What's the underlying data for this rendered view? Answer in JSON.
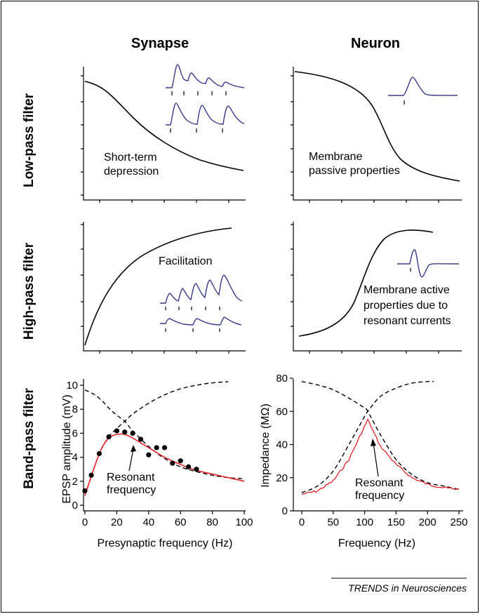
{
  "columns": {
    "left": "Synapse",
    "right": "Neuron"
  },
  "rows": {
    "low": "Low-pass filter",
    "high": "High-pass filter",
    "band": "Band-pass filter"
  },
  "panels": {
    "low_synapse": {
      "label_lines": [
        "Short-term",
        "depression"
      ]
    },
    "low_neuron": {
      "label_lines": [
        "Membrane",
        "passive properties"
      ]
    },
    "high_synapse": {
      "label_lines": [
        "Facilitation"
      ]
    },
    "high_neuron": {
      "label_lines": [
        "Membrane active",
        "properties due to",
        "resonant currents"
      ]
    }
  },
  "chart_data": [
    {
      "type": "line",
      "panel": "band_synapse",
      "ylabel": "EPSP amplitude (mV)",
      "xlabel": "Presynaptic frequency (Hz)",
      "xlim": [
        0,
        100
      ],
      "ylim": [
        0,
        10
      ],
      "x_ticks": [
        0,
        20,
        40,
        60,
        80,
        100
      ],
      "y_ticks": [
        0,
        2,
        4,
        6,
        8,
        10
      ],
      "annotation_lines": [
        "Resonant",
        "frequency"
      ],
      "scatter": {
        "x": [
          0,
          4,
          9,
          15,
          20,
          25,
          30,
          35,
          40,
          45,
          50,
          55,
          60,
          65,
          70
        ],
        "y": [
          1.2,
          2.5,
          4.3,
          5.7,
          6.2,
          6.1,
          6.0,
          5.5,
          4.2,
          4.8,
          4.8,
          3.5,
          3.7,
          3.2,
          3.0
        ]
      },
      "fit_curve": {
        "x": [
          0,
          5,
          10,
          15,
          20,
          25,
          30,
          40,
          50,
          60,
          70,
          80,
          90,
          100
        ],
        "y": [
          0.8,
          2.8,
          4.6,
          5.6,
          5.9,
          5.9,
          5.6,
          4.8,
          4.0,
          3.4,
          2.9,
          2.6,
          2.3,
          2.0
        ]
      },
      "dashed_curves": [
        {
          "x": [
            0,
            5,
            10,
            15,
            20,
            25,
            30,
            40,
            50,
            60,
            70,
            80,
            90,
            100
          ],
          "y": [
            9.6,
            9.3,
            8.8,
            8.1,
            7.5,
            7.0,
            6.2,
            4.9,
            3.9,
            3.2,
            2.8,
            2.5,
            2.3,
            2.2
          ]
        },
        {
          "x": [
            0,
            5,
            10,
            15,
            20,
            25,
            30,
            40,
            50,
            60,
            70,
            80,
            90
          ],
          "y": [
            0.8,
            2.8,
            4.6,
            5.7,
            6.4,
            7.0,
            7.6,
            8.5,
            9.2,
            9.7,
            10.0,
            10.2,
            10.3
          ]
        }
      ]
    },
    {
      "type": "line",
      "panel": "band_neuron",
      "ylabel": "Impedance (MΩ)",
      "xlabel": "Frequency (Hz)",
      "xlim": [
        0,
        250
      ],
      "ylim": [
        0,
        80
      ],
      "x_ticks": [
        0,
        50,
        100,
        150,
        200,
        250
      ],
      "y_ticks": [
        0,
        20,
        40,
        60,
        80
      ],
      "annotation_lines": [
        "Resonant",
        "frequency"
      ],
      "dashed_curves": [
        {
          "x": [
            0,
            25,
            50,
            75,
            100,
            105,
            125,
            150,
            175,
            200,
            225,
            250
          ],
          "y": [
            78,
            76,
            73,
            68,
            62,
            60,
            46,
            31,
            22,
            17,
            15,
            13
          ]
        },
        {
          "x": [
            0,
            25,
            50,
            75,
            100,
            105,
            125,
            150,
            175,
            200,
            210
          ],
          "y": [
            11,
            15,
            24,
            40,
            57,
            60,
            69,
            74,
            77,
            78,
            78
          ]
        }
      ],
      "resonance_curve": {
        "x": [
          0,
          25,
          50,
          75,
          90,
          100,
          105,
          110,
          125,
          150,
          175,
          200,
          225,
          250
        ],
        "y": [
          10,
          12,
          18,
          31,
          43,
          51,
          55,
          51,
          39,
          28,
          20,
          16,
          14,
          13
        ]
      }
    }
  ],
  "credit": "TRENDS in Neurosciences",
  "colors": {
    "trace": "#3a3a8c",
    "fit": "#e8202a",
    "ink": "#000000"
  }
}
